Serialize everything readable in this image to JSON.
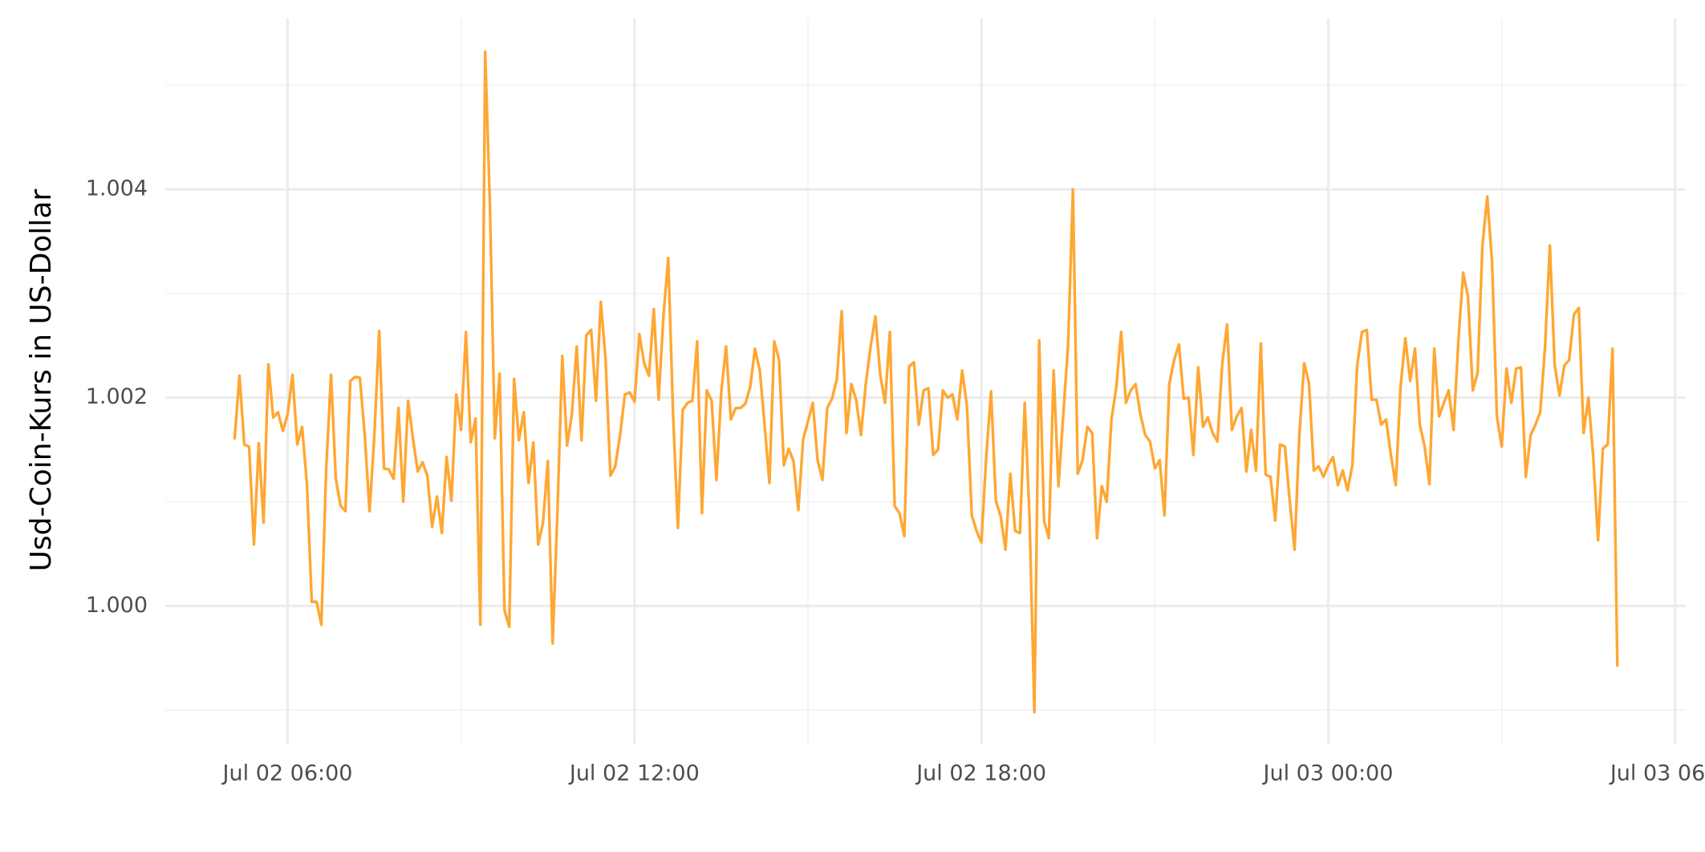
{
  "chart_data": {
    "type": "line",
    "ylabel": "Usd-Coin-Kurs in US-Dollar",
    "color": "#ffa733",
    "grid": true,
    "xlim": [
      "Jul 02 03:53",
      "Jul 03 06:11"
    ],
    "xticks": [
      "Jul 02 06:00",
      "Jul 02 12:00",
      "Jul 02 18:00",
      "Jul 03 00:00",
      "Jul 03 06:00"
    ],
    "x_minor_grid": [
      "Jul 02 09:00",
      "Jul 02 15:00",
      "Jul 02 21:00",
      "Jul 03 03:00"
    ],
    "ylim": [
      0.99867,
      1.00564
    ],
    "yticks": [
      {
        "value": 1,
        "label": "1.000"
      },
      1.002,
      1.004
    ],
    "y_minor_grid": [
      0.999,
      1.001,
      1.003,
      1.005
    ],
    "x": [
      "Jul 02 05:05",
      "Jul 02 05:10",
      "Jul 02 05:15",
      "Jul 02 05:20",
      "Jul 02 05:25",
      "Jul 02 05:30",
      "Jul 02 05:35",
      "Jul 02 05:40",
      "Jul 02 05:45",
      "Jul 02 05:50",
      "Jul 02 05:55",
      "Jul 02 06:00",
      "Jul 02 06:05",
      "Jul 02 06:10",
      "Jul 02 06:15",
      "Jul 02 06:20",
      "Jul 02 06:25",
      "Jul 02 06:30",
      "Jul 02 06:35",
      "Jul 02 06:40",
      "Jul 02 06:45",
      "Jul 02 06:50",
      "Jul 02 06:55",
      "Jul 02 07:00",
      "Jul 02 07:05",
      "Jul 02 07:10",
      "Jul 02 07:15",
      "Jul 02 07:20",
      "Jul 02 07:25",
      "Jul 02 07:30",
      "Jul 02 07:35",
      "Jul 02 07:40",
      "Jul 02 07:45",
      "Jul 02 07:50",
      "Jul 02 07:55",
      "Jul 02 08:00",
      "Jul 02 08:05",
      "Jul 02 08:10",
      "Jul 02 08:15",
      "Jul 02 08:20",
      "Jul 02 08:25",
      "Jul 02 08:30",
      "Jul 02 08:35",
      "Jul 02 08:40",
      "Jul 02 08:45",
      "Jul 02 08:50",
      "Jul 02 08:55",
      "Jul 02 09:00",
      "Jul 02 09:05",
      "Jul 02 09:10",
      "Jul 02 09:15",
      "Jul 02 09:20",
      "Jul 02 09:25",
      "Jul 02 09:30",
      "Jul 02 09:35",
      "Jul 02 09:40",
      "Jul 02 09:45",
      "Jul 02 09:50",
      "Jul 02 09:55",
      "Jul 02 10:00",
      "Jul 02 10:05",
      "Jul 02 10:10",
      "Jul 02 10:15",
      "Jul 02 10:20",
      "Jul 02 10:25",
      "Jul 02 10:30",
      "Jul 02 10:35",
      "Jul 02 10:40",
      "Jul 02 10:45",
      "Jul 02 10:50",
      "Jul 02 10:55",
      "Jul 02 11:00",
      "Jul 02 11:05",
      "Jul 02 11:10",
      "Jul 02 11:15",
      "Jul 02 11:20",
      "Jul 02 11:25",
      "Jul 02 11:30",
      "Jul 02 11:35",
      "Jul 02 11:40",
      "Jul 02 11:45",
      "Jul 02 11:50",
      "Jul 02 11:55",
      "Jul 02 12:00",
      "Jul 02 12:05",
      "Jul 02 12:10",
      "Jul 02 12:15",
      "Jul 02 12:20",
      "Jul 02 12:25",
      "Jul 02 12:30",
      "Jul 02 12:35",
      "Jul 02 12:40",
      "Jul 02 12:45",
      "Jul 02 12:50",
      "Jul 02 12:55",
      "Jul 02 13:00",
      "Jul 02 13:05",
      "Jul 02 13:10",
      "Jul 02 13:15",
      "Jul 02 13:20",
      "Jul 02 13:25",
      "Jul 02 13:30",
      "Jul 02 13:35",
      "Jul 02 13:40",
      "Jul 02 13:45",
      "Jul 02 13:50",
      "Jul 02 13:55",
      "Jul 02 14:00",
      "Jul 02 14:05",
      "Jul 02 14:10",
      "Jul 02 14:15",
      "Jul 02 14:20",
      "Jul 02 14:25",
      "Jul 02 14:30",
      "Jul 02 14:35",
      "Jul 02 14:40",
      "Jul 02 14:45",
      "Jul 02 14:50",
      "Jul 02 14:55",
      "Jul 02 15:00",
      "Jul 02 15:05",
      "Jul 02 15:10",
      "Jul 02 15:15",
      "Jul 02 15:20",
      "Jul 02 15:25",
      "Jul 02 15:30",
      "Jul 02 15:35",
      "Jul 02 15:40",
      "Jul 02 15:45",
      "Jul 02 15:50",
      "Jul 02 15:55",
      "Jul 02 16:00",
      "Jul 02 16:05",
      "Jul 02 16:10",
      "Jul 02 16:15",
      "Jul 02 16:20",
      "Jul 02 16:25",
      "Jul 02 16:30",
      "Jul 02 16:35",
      "Jul 02 16:40",
      "Jul 02 16:45",
      "Jul 02 16:50",
      "Jul 02 16:55",
      "Jul 02 17:00",
      "Jul 02 17:05",
      "Jul 02 17:10",
      "Jul 02 17:15",
      "Jul 02 17:20",
      "Jul 02 17:25",
      "Jul 02 17:30",
      "Jul 02 17:35",
      "Jul 02 17:40",
      "Jul 02 17:45",
      "Jul 02 17:50",
      "Jul 02 17:55",
      "Jul 02 18:00",
      "Jul 02 18:05",
      "Jul 02 18:10",
      "Jul 02 18:15",
      "Jul 02 18:20",
      "Jul 02 18:25",
      "Jul 02 18:30",
      "Jul 02 18:35",
      "Jul 02 18:40",
      "Jul 02 18:45",
      "Jul 02 18:50",
      "Jul 02 18:55",
      "Jul 02 19:00",
      "Jul 02 19:05",
      "Jul 02 19:10",
      "Jul 02 19:15",
      "Jul 02 19:20",
      "Jul 02 19:25",
      "Jul 02 19:30",
      "Jul 02 19:35",
      "Jul 02 19:40",
      "Jul 02 19:45",
      "Jul 02 19:50",
      "Jul 02 19:55",
      "Jul 02 20:00",
      "Jul 02 20:05",
      "Jul 02 20:10",
      "Jul 02 20:15",
      "Jul 02 20:20",
      "Jul 02 20:25",
      "Jul 02 20:30",
      "Jul 02 20:35",
      "Jul 02 20:40",
      "Jul 02 20:45",
      "Jul 02 20:50",
      "Jul 02 20:55",
      "Jul 02 21:00",
      "Jul 02 21:05",
      "Jul 02 21:10",
      "Jul 02 21:15",
      "Jul 02 21:20",
      "Jul 02 21:25",
      "Jul 02 21:30",
      "Jul 02 21:35",
      "Jul 02 21:40",
      "Jul 02 21:45",
      "Jul 02 21:50",
      "Jul 02 21:55",
      "Jul 02 22:00",
      "Jul 02 22:05",
      "Jul 02 22:10",
      "Jul 02 22:15",
      "Jul 02 22:20",
      "Jul 02 22:25",
      "Jul 02 22:30",
      "Jul 02 22:35",
      "Jul 02 22:40",
      "Jul 02 22:45",
      "Jul 02 22:50",
      "Jul 02 22:55",
      "Jul 02 23:00",
      "Jul 02 23:05",
      "Jul 02 23:10",
      "Jul 02 23:15",
      "Jul 02 23:20",
      "Jul 02 23:25",
      "Jul 02 23:30",
      "Jul 02 23:35",
      "Jul 02 23:40",
      "Jul 02 23:45",
      "Jul 02 23:50",
      "Jul 02 23:55",
      "Jul 03 00:00",
      "Jul 03 00:05",
      "Jul 03 00:10",
      "Jul 03 00:15",
      "Jul 03 00:20",
      "Jul 03 00:25",
      "Jul 03 00:30",
      "Jul 03 00:35",
      "Jul 03 00:40",
      "Jul 03 00:45",
      "Jul 03 00:50",
      "Jul 03 00:55",
      "Jul 03 01:00",
      "Jul 03 01:05",
      "Jul 03 01:10",
      "Jul 03 01:15",
      "Jul 03 01:20",
      "Jul 03 01:25",
      "Jul 03 01:30",
      "Jul 03 01:35",
      "Jul 03 01:40",
      "Jul 03 01:45",
      "Jul 03 01:50",
      "Jul 03 01:55",
      "Jul 03 02:00",
      "Jul 03 02:05",
      "Jul 03 02:10",
      "Jul 03 02:15",
      "Jul 03 02:20",
      "Jul 03 02:25",
      "Jul 03 02:30",
      "Jul 03 02:35",
      "Jul 03 02:40",
      "Jul 03 02:45",
      "Jul 03 02:50",
      "Jul 03 02:55",
      "Jul 03 03:00",
      "Jul 03 03:05",
      "Jul 03 03:10",
      "Jul 03 03:15",
      "Jul 03 03:20",
      "Jul 03 03:25",
      "Jul 03 03:30",
      "Jul 03 03:35",
      "Jul 03 03:40",
      "Jul 03 03:45",
      "Jul 03 03:50",
      "Jul 03 03:55",
      "Jul 03 04:00",
      "Jul 03 04:05",
      "Jul 03 04:10",
      "Jul 03 04:15",
      "Jul 03 04:20",
      "Jul 03 04:25",
      "Jul 03 04:30",
      "Jul 03 04:35",
      "Jul 03 04:40",
      "Jul 03 04:45",
      "Jul 03 04:50",
      "Jul 03 04:55",
      "Jul 03 05:00"
    ],
    "values": [
      1.00161,
      1.00221,
      1.00155,
      1.00153,
      1.00059,
      1.00156,
      1.0008,
      1.00232,
      1.00181,
      1.00186,
      1.00168,
      1.00184,
      1.00222,
      1.00155,
      1.00172,
      1.00117,
      1.00004,
      1.00004,
      0.99982,
      1.00132,
      1.00222,
      1.00122,
      1.00096,
      1.00091,
      1.00216,
      1.0022,
      1.00219,
      1.00164,
      1.00091,
      1.00164,
      1.00264,
      1.00132,
      1.00131,
      1.00122,
      1.0019,
      1.001,
      1.00197,
      1.00161,
      1.00129,
      1.00138,
      1.00125,
      1.00076,
      1.00105,
      1.0007,
      1.00143,
      1.00101,
      1.00203,
      1.00169,
      1.00263,
      1.00157,
      1.0018,
      0.99982,
      1.00532,
      1.00382,
      1.00161,
      1.00223,
      0.99996,
      0.9998,
      1.00218,
      1.00159,
      1.00186,
      1.00118,
      1.00157,
      1.00059,
      1.0008,
      1.00139,
      0.99964,
      1.00091,
      1.0024,
      1.00154,
      1.00184,
      1.00249,
      1.00159,
      1.0026,
      1.00265,
      1.00197,
      1.00292,
      1.00236,
      1.00125,
      1.00134,
      1.00164,
      1.00203,
      1.00205,
      1.00196,
      1.00261,
      1.00233,
      1.00221,
      1.00285,
      1.00198,
      1.00278,
      1.00334,
      1.00184,
      1.00075,
      1.00188,
      1.00195,
      1.00197,
      1.00254,
      1.00089,
      1.00207,
      1.00197,
      1.00121,
      1.00205,
      1.00249,
      1.00179,
      1.0019,
      1.0019,
      1.00194,
      1.0021,
      1.00247,
      1.00226,
      1.00174,
      1.00118,
      1.00254,
      1.00236,
      1.00135,
      1.00151,
      1.00139,
      1.00092,
      1.0016,
      1.00177,
      1.00195,
      1.0014,
      1.00121,
      1.0019,
      1.00199,
      1.00218,
      1.00283,
      1.00166,
      1.00213,
      1.00198,
      1.00164,
      1.00213,
      1.00249,
      1.00278,
      1.00222,
      1.00195,
      1.00263,
      1.00096,
      1.00089,
      1.00067,
      1.0023,
      1.00234,
      1.00174,
      1.00207,
      1.00209,
      1.00145,
      1.0015,
      1.00207,
      1.002,
      1.00203,
      1.00179,
      1.00226,
      1.00192,
      1.00087,
      1.00072,
      1.00061,
      1.00143,
      1.00206,
      1.00101,
      1.00086,
      1.00054,
      1.00127,
      1.00072,
      1.0007,
      1.00195,
      1.00083,
      0.99898,
      1.00255,
      1.00082,
      1.00065,
      1.00226,
      1.00115,
      1.00184,
      1.00251,
      1.004,
      1.00127,
      1.0014,
      1.00172,
      1.00166,
      1.00065,
      1.00115,
      1.001,
      1.00179,
      1.0021,
      1.00263,
      1.00195,
      1.00207,
      1.00213,
      1.00184,
      1.00164,
      1.00158,
      1.00132,
      1.0014,
      1.00087,
      1.00213,
      1.00236,
      1.00251,
      1.00199,
      1.002,
      1.00145,
      1.00229,
      1.00172,
      1.00181,
      1.00166,
      1.00158,
      1.00233,
      1.0027,
      1.00169,
      1.00182,
      1.0019,
      1.00129,
      1.00169,
      1.0013,
      1.00252,
      1.00126,
      1.00124,
      1.00082,
      1.00155,
      1.00153,
      1.00101,
      1.00054,
      1.00164,
      1.00233,
      1.00214,
      1.0013,
      1.00134,
      1.00124,
      1.00135,
      1.00143,
      1.00116,
      1.0013,
      1.00111,
      1.00135,
      1.00231,
      1.00263,
      1.00265,
      1.00198,
      1.00198,
      1.00174,
      1.00179,
      1.00145,
      1.00116,
      1.0021,
      1.00257,
      1.00216,
      1.00247,
      1.00174,
      1.00153,
      1.00117,
      1.00247,
      1.00182,
      1.00195,
      1.00207,
      1.00169,
      1.00254,
      1.0032,
      1.00297,
      1.00207,
      1.00224,
      1.00346,
      1.00393,
      1.0033,
      1.00182,
      1.00153,
      1.00228,
      1.00195,
      1.00228,
      1.00229,
      1.00124,
      1.00164,
      1.00174,
      1.00186,
      1.00249,
      1.00346,
      1.00231,
      1.00202,
      1.00231,
      1.00236,
      1.0028,
      1.00286,
      1.00166,
      1.002,
      1.00143,
      1.00063,
      1.00151,
      1.00155,
      1.00247,
      0.99943
    ]
  }
}
